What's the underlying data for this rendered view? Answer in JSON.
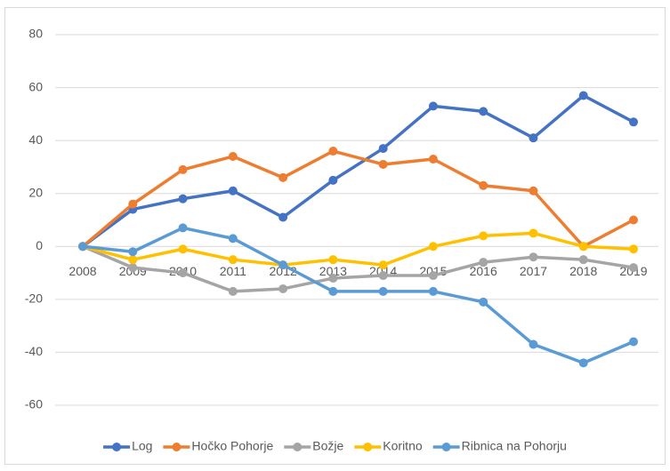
{
  "chart_data": {
    "type": "line",
    "categories": [
      "2008",
      "2009",
      "2010",
      "2011",
      "2012",
      "2013",
      "2014",
      "2015",
      "2016",
      "2017",
      "2018",
      "2019"
    ],
    "series": [
      {
        "name": "Log",
        "color": "#4472c4",
        "values": [
          0,
          14,
          18,
          21,
          11,
          25,
          37,
          53,
          51,
          41,
          57,
          47
        ]
      },
      {
        "name": "Hočko Pohorje",
        "color": "#ed7d31",
        "values": [
          0,
          16,
          29,
          34,
          26,
          36,
          31,
          33,
          23,
          21,
          0,
          10
        ]
      },
      {
        "name": "Božje",
        "color": "#a5a5a5",
        "values": [
          0,
          -8,
          -10,
          -17,
          -16,
          -12,
          -11,
          -11,
          -6,
          -4,
          -5,
          -8
        ]
      },
      {
        "name": "Koritno",
        "color": "#ffc000",
        "values": [
          0,
          -5,
          -1,
          -5,
          -7,
          -5,
          -7,
          0,
          4,
          5,
          0,
          -1
        ]
      },
      {
        "name": "Ribnica na Pohorju",
        "color": "#5b9bd5",
        "values": [
          0,
          -2,
          7,
          3,
          -7,
          -17,
          -17,
          -17,
          -21,
          -37,
          -44,
          -36
        ]
      }
    ],
    "ylim": [
      -60,
      80
    ],
    "yticks": [
      -60,
      -40,
      -20,
      0,
      20,
      40,
      60,
      80
    ],
    "grid": true,
    "legend": "bottom"
  }
}
